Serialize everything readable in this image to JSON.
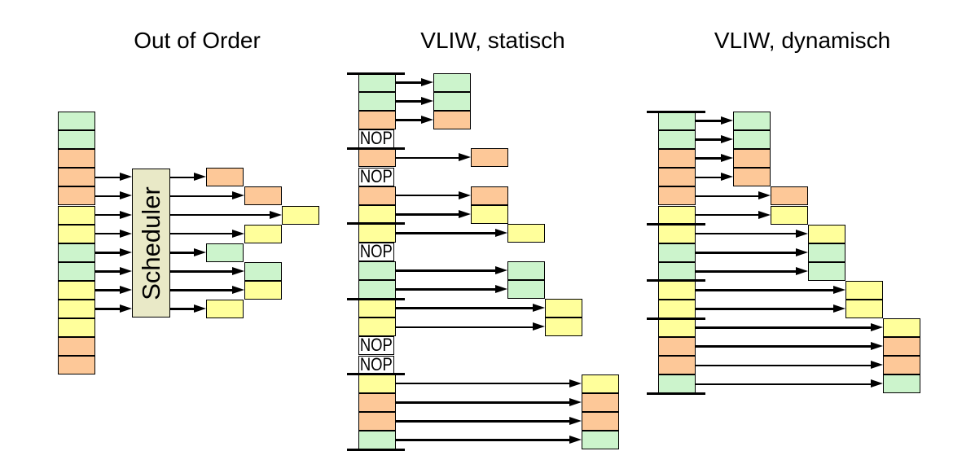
{
  "labels": {
    "nop": "NOP",
    "scheduler": "Scheduler"
  },
  "colors": {
    "green": "#ccf4cc",
    "orange": "#fdc898",
    "yellow": "#ffff9b",
    "nop_background": "#ffffff",
    "scheduler_background": "#e9e9c7",
    "line": "#000000"
  },
  "panels": [
    {
      "id": "out-of-order",
      "title": "Out of Order",
      "scheduler_label": "Scheduler",
      "stack": [
        "green",
        "green",
        "orange",
        "orange",
        "orange",
        "yellow",
        "yellow",
        "green",
        "green",
        "yellow",
        "yellow",
        "yellow",
        "orange",
        "orange"
      ],
      "issue": [
        {
          "row": 4,
          "col": 1
        },
        {
          "row": 5,
          "col": 2
        },
        {
          "row": 6,
          "col": 3
        },
        {
          "row": 7,
          "col": 2
        },
        {
          "row": 8,
          "col": 1
        },
        {
          "row": 9,
          "col": 2
        },
        {
          "row": 10,
          "col": 2
        },
        {
          "row": 11,
          "col": 1
        }
      ]
    },
    {
      "id": "vliw-static",
      "title": "VLIW, statisch",
      "nop_label": "NOP",
      "stack": [
        "green",
        "green",
        "orange",
        "nop",
        "orange",
        "nop",
        "orange",
        "yellow",
        "yellow",
        "nop",
        "green",
        "green",
        "yellow",
        "yellow",
        "nop",
        "nop",
        "yellow",
        "orange",
        "orange",
        "green"
      ],
      "bundle_breaks_after_rows": [
        0,
        4,
        8,
        12,
        16,
        20
      ],
      "issue": [
        {
          "row": 1,
          "col": 1
        },
        {
          "row": 2,
          "col": 1
        },
        {
          "row": 3,
          "col": 1
        },
        {
          "row": 5,
          "col": 2
        },
        {
          "row": 7,
          "col": 2
        },
        {
          "row": 8,
          "col": 2
        },
        {
          "row": 9,
          "col": 3
        },
        {
          "row": 11,
          "col": 3
        },
        {
          "row": 12,
          "col": 3
        },
        {
          "row": 13,
          "col": 4
        },
        {
          "row": 14,
          "col": 4
        },
        {
          "row": 17,
          "col": 5
        },
        {
          "row": 18,
          "col": 5
        },
        {
          "row": 19,
          "col": 5
        },
        {
          "row": 20,
          "col": 5
        }
      ]
    },
    {
      "id": "vliw-dynamic",
      "title": "VLIW, dynamisch",
      "stack": [
        "green",
        "green",
        "orange",
        "orange",
        "orange",
        "yellow",
        "yellow",
        "green",
        "green",
        "yellow",
        "yellow",
        "yellow",
        "orange",
        "orange",
        "green"
      ],
      "bundle_breaks_after_rows": [
        0,
        6,
        9,
        11,
        15
      ],
      "issue": [
        {
          "row": 1,
          "col": 1
        },
        {
          "row": 2,
          "col": 1
        },
        {
          "row": 3,
          "col": 1
        },
        {
          "row": 4,
          "col": 1
        },
        {
          "row": 5,
          "col": 2
        },
        {
          "row": 6,
          "col": 2
        },
        {
          "row": 7,
          "col": 3
        },
        {
          "row": 8,
          "col": 3
        },
        {
          "row": 9,
          "col": 3
        },
        {
          "row": 10,
          "col": 4
        },
        {
          "row": 11,
          "col": 4
        },
        {
          "row": 12,
          "col": 5
        },
        {
          "row": 13,
          "col": 5
        },
        {
          "row": 14,
          "col": 5
        },
        {
          "row": 15,
          "col": 5
        }
      ]
    }
  ]
}
